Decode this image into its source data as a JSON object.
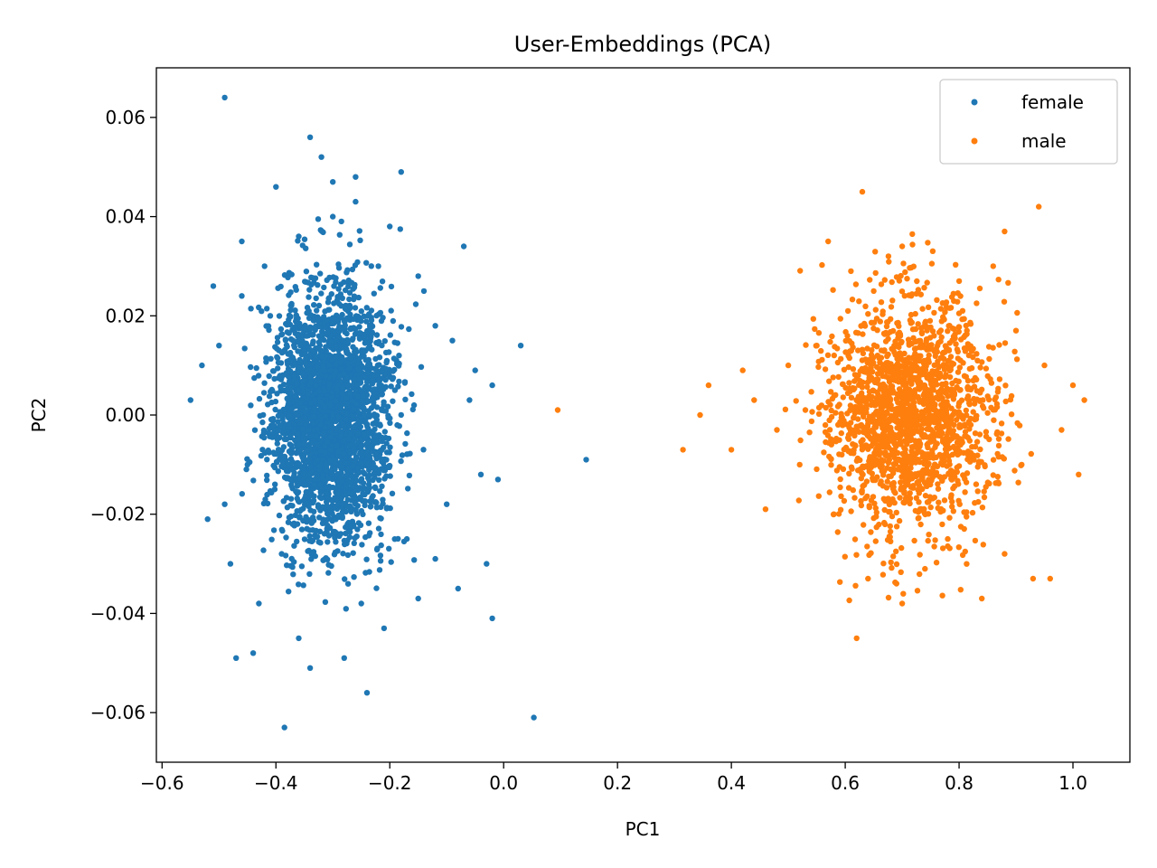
{
  "chart_data": {
    "type": "scatter",
    "title": "User-Embeddings (PCA)",
    "xlabel": "PC1",
    "ylabel": "PC2",
    "xlim": [
      -0.61,
      1.1
    ],
    "ylim": [
      -0.07,
      0.07
    ],
    "xticks": [
      -0.6,
      -0.4,
      -0.2,
      0.0,
      0.2,
      0.4,
      0.6,
      0.8,
      1.0
    ],
    "xtick_labels": [
      "−0.6",
      "−0.4",
      "−0.2",
      "0.0",
      "0.2",
      "0.4",
      "0.6",
      "0.8",
      "1.0"
    ],
    "yticks": [
      0.06,
      0.04,
      0.02,
      0.0,
      -0.02,
      -0.04,
      -0.06
    ],
    "ytick_labels": [
      "0.06",
      "0.04",
      "0.02",
      "0.00",
      "−0.02",
      "−0.04",
      "−0.06"
    ],
    "grid": false,
    "legend_position": "top-right",
    "series": [
      {
        "name": "female",
        "color": "#1f77b4",
        "points": [
          [
            -0.49,
            0.064
          ],
          [
            -0.34,
            0.056
          ],
          [
            -0.32,
            0.052
          ],
          [
            -0.18,
            0.049
          ],
          [
            -0.4,
            0.046
          ],
          [
            -0.3,
            0.047
          ],
          [
            -0.26,
            0.048
          ],
          [
            -0.07,
            0.034
          ],
          [
            0.03,
            0.014
          ],
          [
            0.145,
            -0.009
          ],
          [
            0.053,
            -0.061
          ],
          [
            -0.385,
            -0.063
          ],
          [
            -0.24,
            -0.056
          ],
          [
            -0.02,
            -0.041
          ],
          [
            -0.03,
            -0.03
          ],
          [
            -0.52,
            -0.021
          ],
          [
            -0.55,
            0.003
          ],
          [
            -0.51,
            0.026
          ],
          [
            -0.46,
            0.035
          ],
          [
            -0.34,
            -0.051
          ],
          [
            -0.47,
            -0.049
          ],
          [
            -0.44,
            -0.048
          ],
          [
            -0.2,
            0.038
          ],
          [
            -0.02,
            0.006
          ],
          [
            -0.05,
            0.009
          ],
          [
            -0.01,
            -0.013
          ],
          [
            -0.12,
            -0.029
          ],
          [
            -0.08,
            -0.035
          ],
          [
            -0.15,
            -0.037
          ],
          [
            -0.26,
            0.043
          ],
          [
            -0.28,
            -0.049
          ],
          [
            -0.21,
            -0.043
          ],
          [
            -0.36,
            -0.045
          ],
          [
            -0.43,
            -0.038
          ],
          [
            -0.22,
            0.03
          ],
          [
            -0.14,
            0.025
          ],
          [
            -0.09,
            0.015
          ],
          [
            -0.06,
            0.003
          ],
          [
            -0.1,
            -0.018
          ],
          [
            -0.48,
            -0.03
          ],
          [
            -0.5,
            0.014
          ],
          [
            -0.45,
            -0.01
          ],
          [
            -0.41,
            0.02
          ],
          [
            -0.3,
            0.04
          ],
          [
            -0.36,
            0.036
          ],
          [
            -0.17,
            -0.025
          ],
          [
            -0.25,
            -0.038
          ],
          [
            -0.42,
            0.03
          ],
          [
            -0.39,
            -0.028
          ],
          [
            -0.12,
            0.018
          ],
          [
            -0.04,
            -0.012
          ],
          [
            -0.15,
            0.028
          ],
          [
            -0.46,
            0.024
          ],
          [
            -0.53,
            0.01
          ],
          [
            -0.49,
            -0.018
          ]
        ],
        "cluster": {
          "center": [
            -0.305,
            0.0
          ],
          "sd": [
            0.052,
            0.0125
          ],
          "count": 2800,
          "seed": 11
        }
      },
      {
        "name": "male",
        "color": "#ff7f0e",
        "points": [
          [
            0.095,
            0.001
          ],
          [
            0.315,
            -0.007
          ],
          [
            0.63,
            0.045
          ],
          [
            0.94,
            0.042
          ],
          [
            0.88,
            0.037
          ],
          [
            0.57,
            0.035
          ],
          [
            0.96,
            -0.033
          ],
          [
            0.93,
            -0.033
          ],
          [
            0.84,
            -0.037
          ],
          [
            0.62,
            -0.045
          ],
          [
            0.7,
            -0.038
          ],
          [
            0.69,
            -0.034
          ],
          [
            0.64,
            -0.033
          ],
          [
            1.01,
            -0.012
          ],
          [
            1.02,
            0.003
          ],
          [
            1.0,
            0.006
          ],
          [
            0.36,
            0.006
          ],
          [
            0.345,
            0.0
          ],
          [
            0.4,
            -0.007
          ],
          [
            0.44,
            0.003
          ],
          [
            0.42,
            0.009
          ],
          [
            0.46,
            -0.019
          ],
          [
            0.88,
            -0.028
          ],
          [
            0.9,
            0.017
          ],
          [
            0.7,
            0.034
          ],
          [
            0.61,
            0.029
          ],
          [
            0.95,
            0.01
          ],
          [
            0.98,
            -0.003
          ],
          [
            0.55,
            0.014
          ],
          [
            0.52,
            -0.01
          ],
          [
            0.48,
            -0.003
          ],
          [
            0.5,
            0.01
          ],
          [
            0.86,
            0.03
          ],
          [
            0.74,
            -0.031
          ],
          [
            0.8,
            0.027
          ],
          [
            0.58,
            -0.02
          ],
          [
            0.65,
            0.025
          ],
          [
            0.91,
            -0.01
          ],
          [
            0.53,
            0.001
          ],
          [
            0.78,
            -0.025
          ]
        ],
        "cluster": {
          "center": [
            0.715,
            0.0
          ],
          "sd": [
            0.072,
            0.0118
          ],
          "count": 1800,
          "seed": 29
        }
      }
    ]
  }
}
